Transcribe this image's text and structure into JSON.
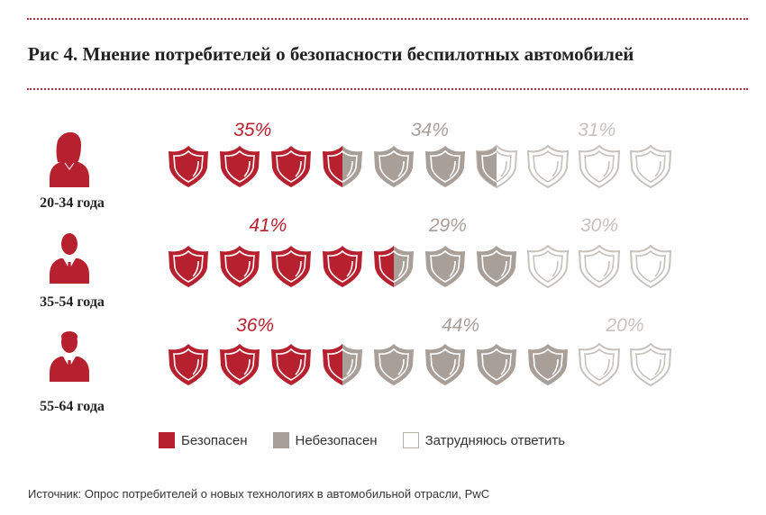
{
  "title": "Рис 4. Мнение потребителей о безопасности беспилотных автомобилей",
  "source": "Источник: Опрос потребителей о новых технологиях в автомобильной отрасли, PwC",
  "colors": {
    "safe": "#b7202e",
    "unsafe": "#a89f99",
    "unsure": "#ffffff",
    "unsure_stroke": "#c8c2bd",
    "accent_line": "#b5323e"
  },
  "legend": [
    {
      "label": "Безопасен",
      "color": "#b7202e"
    },
    {
      "label": "Небезопасен",
      "color": "#a89f99"
    },
    {
      "label": "Затрудняюсь ответить",
      "color": "#ffffff"
    }
  ],
  "chart_data": {
    "type": "pictogram",
    "title": "Рис 4. Мнение потребителей о безопасности беспилотных автомобилей",
    "categories": [
      "20-34 года",
      "35-54 года",
      "55-64 года"
    ],
    "icon": "shield-icon",
    "icons_per_row": 10,
    "series": [
      {
        "name": "Безопасен",
        "values": [
          35,
          41,
          36
        ],
        "labels": [
          "35%",
          "41%",
          "36%"
        ]
      },
      {
        "name": "Небезопасен",
        "values": [
          34,
          29,
          44
        ],
        "labels": [
          "34%",
          "29%",
          "44%"
        ]
      },
      {
        "name": "Затрудняюсь ответить",
        "values": [
          31,
          30,
          20
        ],
        "labels": [
          "31%",
          "30%",
          "20%"
        ]
      }
    ],
    "avatars": [
      "woman-avatar-icon",
      "man-avatar-icon",
      "bearded-man-avatar-icon"
    ],
    "legend_position": "bottom"
  }
}
